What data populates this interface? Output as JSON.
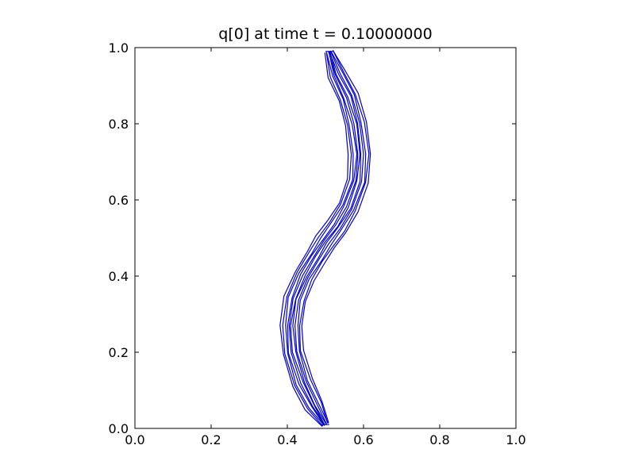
{
  "chart_data": {
    "type": "contour",
    "title": "q[0] at time t =     0.10000000",
    "xlabel": "",
    "ylabel": "",
    "xlim": [
      0.0,
      1.0
    ],
    "ylim": [
      0.0,
      1.0
    ],
    "xticks": [
      "0.0",
      "0.2",
      "0.4",
      "0.6",
      "0.8",
      "1.0"
    ],
    "yticks": [
      "0.0",
      "0.2",
      "0.4",
      "0.6",
      "0.8",
      "1.0"
    ],
    "grid": false,
    "legend": "none",
    "line_color": "#0000cc",
    "band": {
      "description_free": true,
      "centerline": [
        [
          0.5,
          0.01
        ],
        [
          0.47,
          0.06
        ],
        [
          0.44,
          0.12
        ],
        [
          0.415,
          0.2
        ],
        [
          0.41,
          0.27
        ],
        [
          0.42,
          0.34
        ],
        [
          0.445,
          0.4
        ],
        [
          0.475,
          0.45
        ],
        [
          0.5,
          0.49
        ],
        [
          0.53,
          0.53
        ],
        [
          0.56,
          0.58
        ],
        [
          0.585,
          0.65
        ],
        [
          0.59,
          0.72
        ],
        [
          0.58,
          0.8
        ],
        [
          0.56,
          0.87
        ],
        [
          0.53,
          0.93
        ],
        [
          0.51,
          0.99
        ]
      ],
      "contour_offsets": [
        -0.028,
        -0.022,
        -0.016,
        -0.01,
        -0.005,
        0.0,
        0.005,
        0.01,
        0.016,
        0.022,
        0.028
      ]
    }
  }
}
